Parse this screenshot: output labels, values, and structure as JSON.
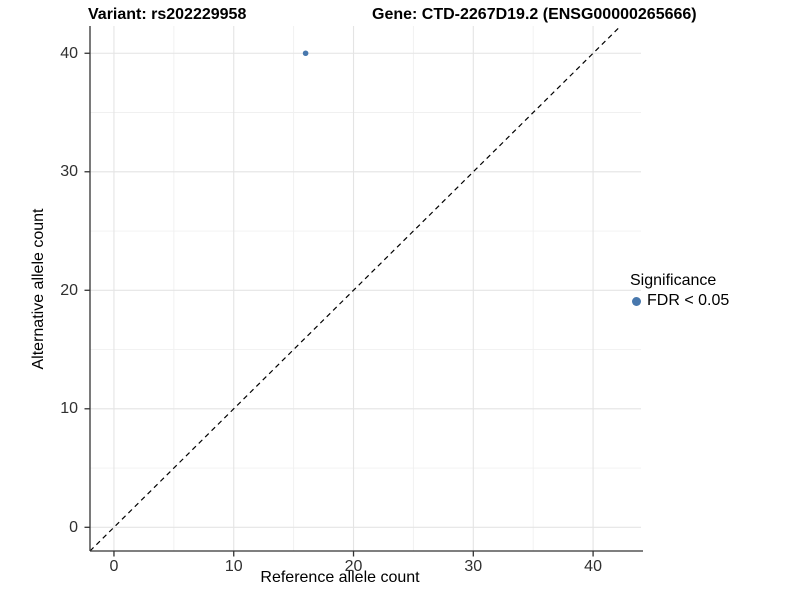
{
  "chart_data": {
    "type": "scatter",
    "titles": {
      "left": "Variant: rs202229958",
      "right": "Gene: CTD-2267D19.2 (ENSG00000265666)"
    },
    "xlabel": "Reference allele count",
    "ylabel": "Alternative allele count",
    "xlim": [
      -2,
      44
    ],
    "ylim": [
      -2,
      42.3
    ],
    "xticks": [
      0,
      10,
      20,
      30,
      40
    ],
    "yticks": [
      0,
      10,
      20,
      30,
      40
    ],
    "xticks_minor": [
      5,
      15,
      25,
      35
    ],
    "yticks_minor": [
      5,
      15,
      25,
      35
    ],
    "grid": true,
    "reference_line": {
      "type": "identity",
      "style": "dashed",
      "color": "#000000"
    },
    "series": [
      {
        "name": "FDR < 0.05",
        "color": "#4878ad",
        "points": [
          {
            "x": 16,
            "y": 40
          }
        ]
      }
    ],
    "legend": {
      "title": "Significance",
      "position": "right",
      "entries": [
        {
          "label": "FDR < 0.05",
          "color": "#4878ad"
        }
      ]
    },
    "colors": {
      "axis_line": "#333333",
      "grid_major": "#e4e4e4",
      "grid_minor": "#f0f0f0"
    }
  }
}
